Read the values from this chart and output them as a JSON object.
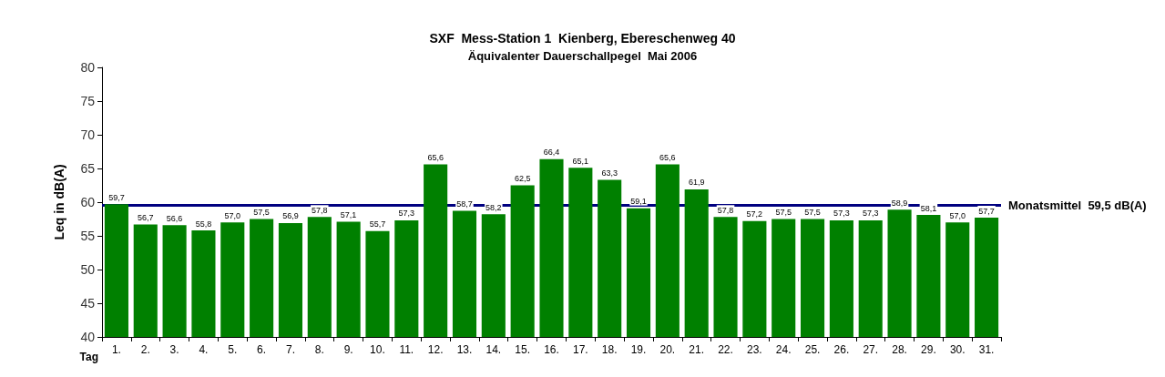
{
  "chart_data": {
    "type": "bar",
    "title": "SXF  Mess-Station 1  Kienberg, Ebereschenweg 40",
    "subtitle": "Äquivalenter Dauerschallpegel  Mai 2006",
    "xlabel": "Tag",
    "ylabel": "Leq in dB(A)",
    "categories": [
      "1.",
      "2.",
      "3.",
      "4.",
      "5.",
      "6.",
      "7.",
      "8.",
      "9.",
      "10.",
      "11.",
      "12.",
      "13.",
      "14.",
      "15.",
      "16.",
      "17.",
      "18.",
      "19.",
      "20.",
      "21.",
      "22.",
      "23.",
      "24.",
      "25.",
      "26.",
      "27.",
      "28.",
      "29.",
      "30.",
      "31."
    ],
    "values": [
      59.7,
      56.7,
      56.6,
      55.8,
      57.0,
      57.5,
      56.9,
      57.8,
      57.1,
      55.7,
      57.3,
      65.6,
      58.7,
      58.2,
      62.5,
      66.4,
      65.1,
      63.3,
      59.1,
      65.6,
      61.9,
      57.8,
      57.2,
      57.5,
      57.5,
      57.3,
      57.3,
      58.9,
      58.1,
      57.0,
      57.7
    ],
    "value_labels": [
      "59,7",
      "56,7",
      "56,6",
      "55,8",
      "57,0",
      "57,5",
      "56,9",
      "57,8",
      "57,1",
      "55,7",
      "57,3",
      "65,6",
      "58,7",
      "58,2",
      "62,5",
      "66,4",
      "65,1",
      "63,3",
      "59,1",
      "65,6",
      "61,9",
      "57,8",
      "57,2",
      "57,5",
      "57,5",
      "57,3",
      "57,3",
      "58,9",
      "58,1",
      "57,0",
      "57,7"
    ],
    "color": "#008000",
    "ylim": [
      40,
      80
    ],
    "yticks": [
      40,
      45,
      50,
      55,
      60,
      65,
      70,
      75,
      80
    ],
    "grid": false,
    "ref_lines": [
      {
        "axis": "y",
        "value": 59.5,
        "label": "Monatsmittel  59,5 dB(A)",
        "color": "#000080",
        "line_style": "solid"
      }
    ]
  }
}
